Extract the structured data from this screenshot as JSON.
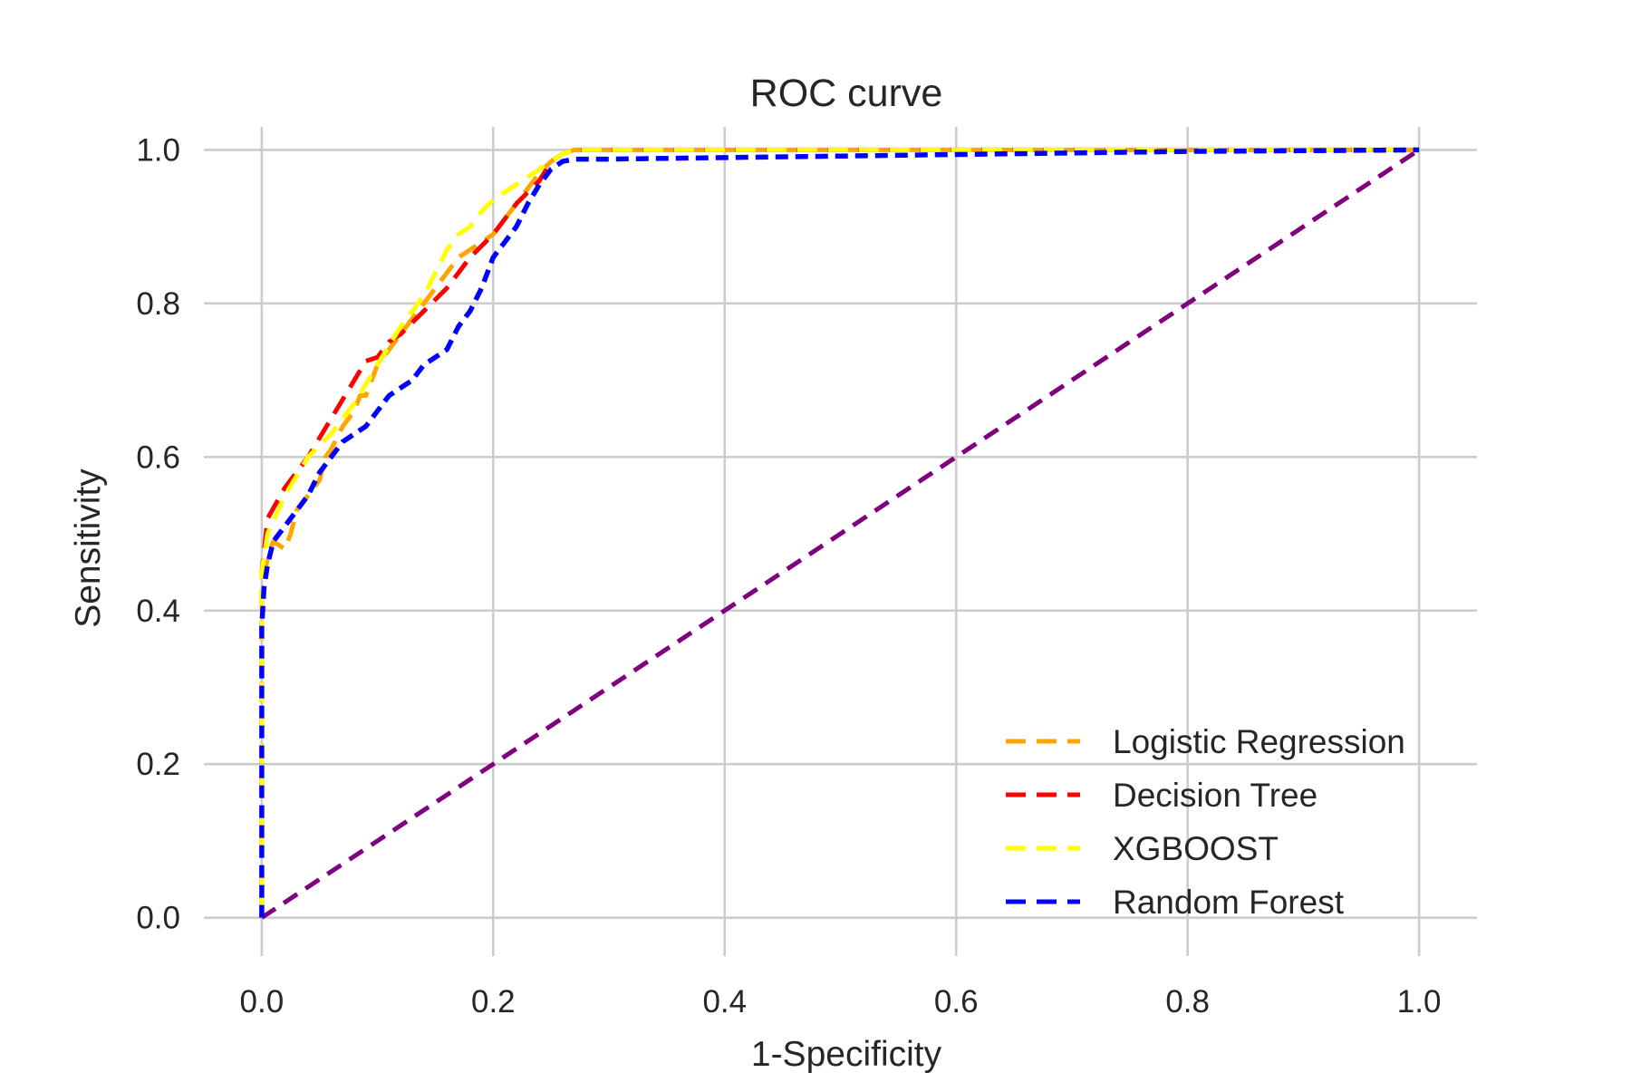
{
  "chart_data": {
    "type": "line",
    "title": "ROC curve",
    "xlabel": "1-Specificity",
    "ylabel": "Sensitivity",
    "xlim": [
      -0.05,
      1.05
    ],
    "ylim": [
      -0.05,
      1.03
    ],
    "xticks": [
      0.0,
      0.2,
      0.4,
      0.6,
      0.8,
      1.0
    ],
    "yticks": [
      0.0,
      0.2,
      0.4,
      0.6,
      0.8,
      1.0
    ],
    "xtick_labels": [
      "0.0",
      "0.2",
      "0.4",
      "0.6",
      "0.8",
      "1.0"
    ],
    "ytick_labels": [
      "0.0",
      "0.2",
      "0.4",
      "0.6",
      "0.8",
      "1.0"
    ],
    "grid": true,
    "legend_position": "bottom-right",
    "series": [
      {
        "name": "Logistic Regression",
        "color": "#FFA500",
        "x": [
          0,
          0,
          0.005,
          0.01,
          0.02,
          0.025,
          0.03,
          0.04,
          0.05,
          0.055,
          0.06,
          0.07,
          0.08,
          0.085,
          0.09,
          0.1,
          0.11,
          0.12,
          0.13,
          0.14,
          0.15,
          0.16,
          0.17,
          0.18,
          0.19,
          0.2,
          0.21,
          0.22,
          0.23,
          0.24,
          0.25,
          0.26,
          0.27,
          0.3,
          0.4,
          0.5,
          0.6,
          0.7,
          0.8,
          0.9,
          1.0
        ],
        "y": [
          0,
          0.42,
          0.47,
          0.49,
          0.48,
          0.5,
          0.53,
          0.55,
          0.57,
          0.6,
          0.61,
          0.64,
          0.66,
          0.68,
          0.68,
          0.72,
          0.74,
          0.76,
          0.78,
          0.8,
          0.82,
          0.84,
          0.86,
          0.87,
          0.88,
          0.89,
          0.91,
          0.93,
          0.95,
          0.97,
          0.985,
          0.995,
          1.0,
          1.0,
          1.0,
          1.0,
          1.0,
          1.0,
          1.0,
          1.0,
          1.0
        ]
      },
      {
        "name": "Decision Tree",
        "color": "#FF0000",
        "x": [
          0,
          0,
          0.005,
          0.02,
          0.04,
          0.06,
          0.08,
          0.09,
          0.1,
          0.11,
          0.12,
          0.14,
          0.16,
          0.18,
          0.2,
          0.22,
          0.24,
          0.25,
          0.26,
          0.27,
          0.3,
          0.4,
          0.5,
          0.6,
          0.7,
          0.8,
          0.9,
          1.0
        ],
        "y": [
          0,
          0.45,
          0.52,
          0.56,
          0.6,
          0.65,
          0.7,
          0.725,
          0.73,
          0.75,
          0.76,
          0.79,
          0.82,
          0.86,
          0.89,
          0.93,
          0.96,
          0.985,
          0.995,
          1.0,
          1.0,
          1.0,
          1.0,
          1.0,
          1.0,
          1.0,
          1.0,
          1.0
        ]
      },
      {
        "name": "XGBOOST",
        "color": "#FFFF00",
        "x": [
          0,
          0,
          0.005,
          0.02,
          0.04,
          0.06,
          0.08,
          0.1,
          0.12,
          0.14,
          0.15,
          0.16,
          0.17,
          0.18,
          0.19,
          0.2,
          0.21,
          0.22,
          0.23,
          0.24,
          0.25,
          0.26,
          0.27,
          0.3,
          0.4,
          0.5,
          0.6,
          0.7,
          0.8,
          0.9,
          1.0
        ],
        "y": [
          0,
          0.45,
          0.5,
          0.55,
          0.6,
          0.63,
          0.67,
          0.72,
          0.77,
          0.81,
          0.84,
          0.87,
          0.89,
          0.9,
          0.92,
          0.935,
          0.945,
          0.955,
          0.965,
          0.975,
          0.985,
          0.995,
          1.0,
          1.0,
          1.0,
          1.0,
          1.0,
          1.0,
          1.0,
          1.0,
          1.0
        ]
      },
      {
        "name": "Random Forest",
        "color": "#0000FF",
        "x": [
          0,
          0,
          0.002,
          0.005,
          0.01,
          0.02,
          0.03,
          0.04,
          0.05,
          0.06,
          0.07,
          0.08,
          0.09,
          0.1,
          0.11,
          0.12,
          0.13,
          0.14,
          0.15,
          0.16,
          0.17,
          0.18,
          0.19,
          0.2,
          0.21,
          0.22,
          0.23,
          0.24,
          0.25,
          0.26,
          0.27,
          0.3,
          0.4,
          0.5,
          0.6,
          0.7,
          0.8,
          0.9,
          1.0
        ],
        "y": [
          0,
          0.38,
          0.43,
          0.46,
          0.49,
          0.51,
          0.53,
          0.55,
          0.58,
          0.6,
          0.62,
          0.63,
          0.64,
          0.66,
          0.68,
          0.69,
          0.7,
          0.72,
          0.73,
          0.74,
          0.77,
          0.79,
          0.82,
          0.86,
          0.88,
          0.9,
          0.93,
          0.955,
          0.975,
          0.985,
          0.988,
          0.988,
          0.99,
          0.992,
          0.994,
          0.996,
          0.998,
          0.999,
          1.0
        ]
      },
      {
        "color": "#800080",
        "x": [
          0,
          1
        ],
        "y": [
          0,
          1
        ]
      }
    ]
  }
}
